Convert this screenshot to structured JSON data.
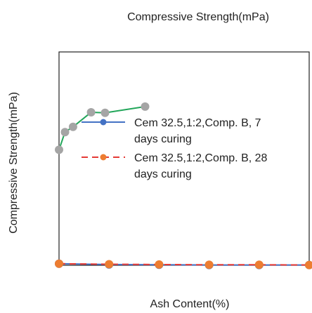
{
  "chart_data": {
    "type": "line",
    "title": "Compressive Strength(mPa)",
    "xlabel": "Ash Content(%)",
    "ylabel": "Compressive Strength(mPa)",
    "grid": false,
    "legend_position": "center",
    "xlim": [
      0,
      25
    ],
    "ylim": [
      0,
      41
    ],
    "series": [
      {
        "name": "Cem 32.5,1:2,Comp. B, 7 days curing",
        "color": "#4472C4",
        "style": "solid",
        "x": [
          0,
          5,
          10,
          15,
          20,
          25
        ],
        "values": [
          0.3,
          0.15,
          0.1,
          0.05,
          0.05,
          0.05
        ]
      },
      {
        "name": "Cem 32.5,1:2,Comp. B, 28 days curing",
        "color": "#ED7D31",
        "style": "dashed",
        "x": [
          0,
          5,
          10,
          15,
          20,
          25
        ],
        "values": [
          0.3,
          0.2,
          0.15,
          0.1,
          0.1,
          0.05
        ]
      },
      {
        "color": "#22A65A",
        "marker_color": "#A5A5A5",
        "style": "solid",
        "x": [
          0,
          0.6,
          1.4,
          3.2,
          4.6,
          8.6
        ],
        "values": [
          22.2,
          25.6,
          26.6,
          29.4,
          29.3,
          30.5
        ]
      }
    ]
  }
}
